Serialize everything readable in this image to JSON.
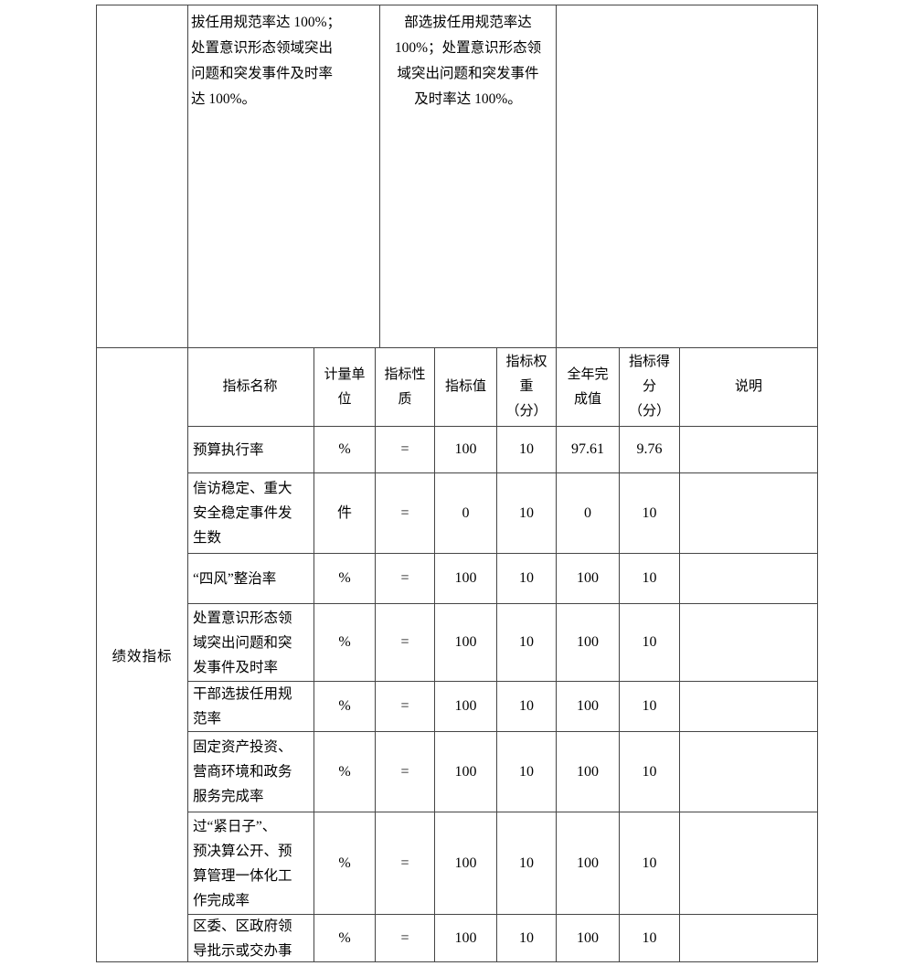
{
  "document": {
    "background": "#ffffff",
    "text_color": "#000000",
    "border_color": "#454545"
  },
  "continuation": {
    "left_cell": "",
    "measures_text": "拔任用规范率达 100%；\n处置意识形态领域突出\n问题和突发事件及时率\n达 100%。",
    "targets_text": "部选拔任用规范率达\n100%；处置意识形态领\n域突出问题和突发事件\n及时率达 100%。",
    "right_cell": ""
  },
  "indicators": {
    "section_label": "绩效指标",
    "columns": {
      "name": "指标名称",
      "unit": "计量单\n位",
      "nature": "指标性\n质",
      "target": "指标值",
      "weight": "指标权\n重\n（分）",
      "actual": "全年完\n成值",
      "score": "指标得\n分\n（分）",
      "note": "说明"
    },
    "rows": [
      {
        "name": "预算执行率",
        "unit": "%",
        "nature": "=",
        "target": "100",
        "weight": "10",
        "actual": "97.61",
        "score": "9.76",
        "note": ""
      },
      {
        "name": "信访稳定、重大\n安全稳定事件发\n生数",
        "unit": "件",
        "nature": "=",
        "target": "0",
        "weight": "10",
        "actual": "0",
        "score": "10",
        "note": ""
      },
      {
        "name": "“四风”整治率",
        "unit": "%",
        "nature": "=",
        "target": "100",
        "weight": "10",
        "actual": "100",
        "score": "10",
        "note": ""
      },
      {
        "name": "处置意识形态领\n域突出问题和突\n发事件及时率",
        "unit": "%",
        "nature": "=",
        "target": "100",
        "weight": "10",
        "actual": "100",
        "score": "10",
        "note": ""
      },
      {
        "name": "干部选拔任用规\n范率",
        "unit": "%",
        "nature": "=",
        "target": "100",
        "weight": "10",
        "actual": "100",
        "score": "10",
        "note": ""
      },
      {
        "name": "固定资产投资、\n营商环境和政务\n服务完成率",
        "unit": "%",
        "nature": "=",
        "target": "100",
        "weight": "10",
        "actual": "100",
        "score": "10",
        "note": ""
      },
      {
        "name": "过“紧日子”、\n预决算公开、预\n算管理一体化工\n作完成率",
        "unit": "%",
        "nature": "=",
        "target": "100",
        "weight": "10",
        "actual": "100",
        "score": "10",
        "note": ""
      },
      {
        "name": "区委、区政府领\n导批示或交办事",
        "unit": "%",
        "nature": "=",
        "target": "100",
        "weight": "10",
        "actual": "100",
        "score": "10",
        "note": ""
      }
    ]
  }
}
